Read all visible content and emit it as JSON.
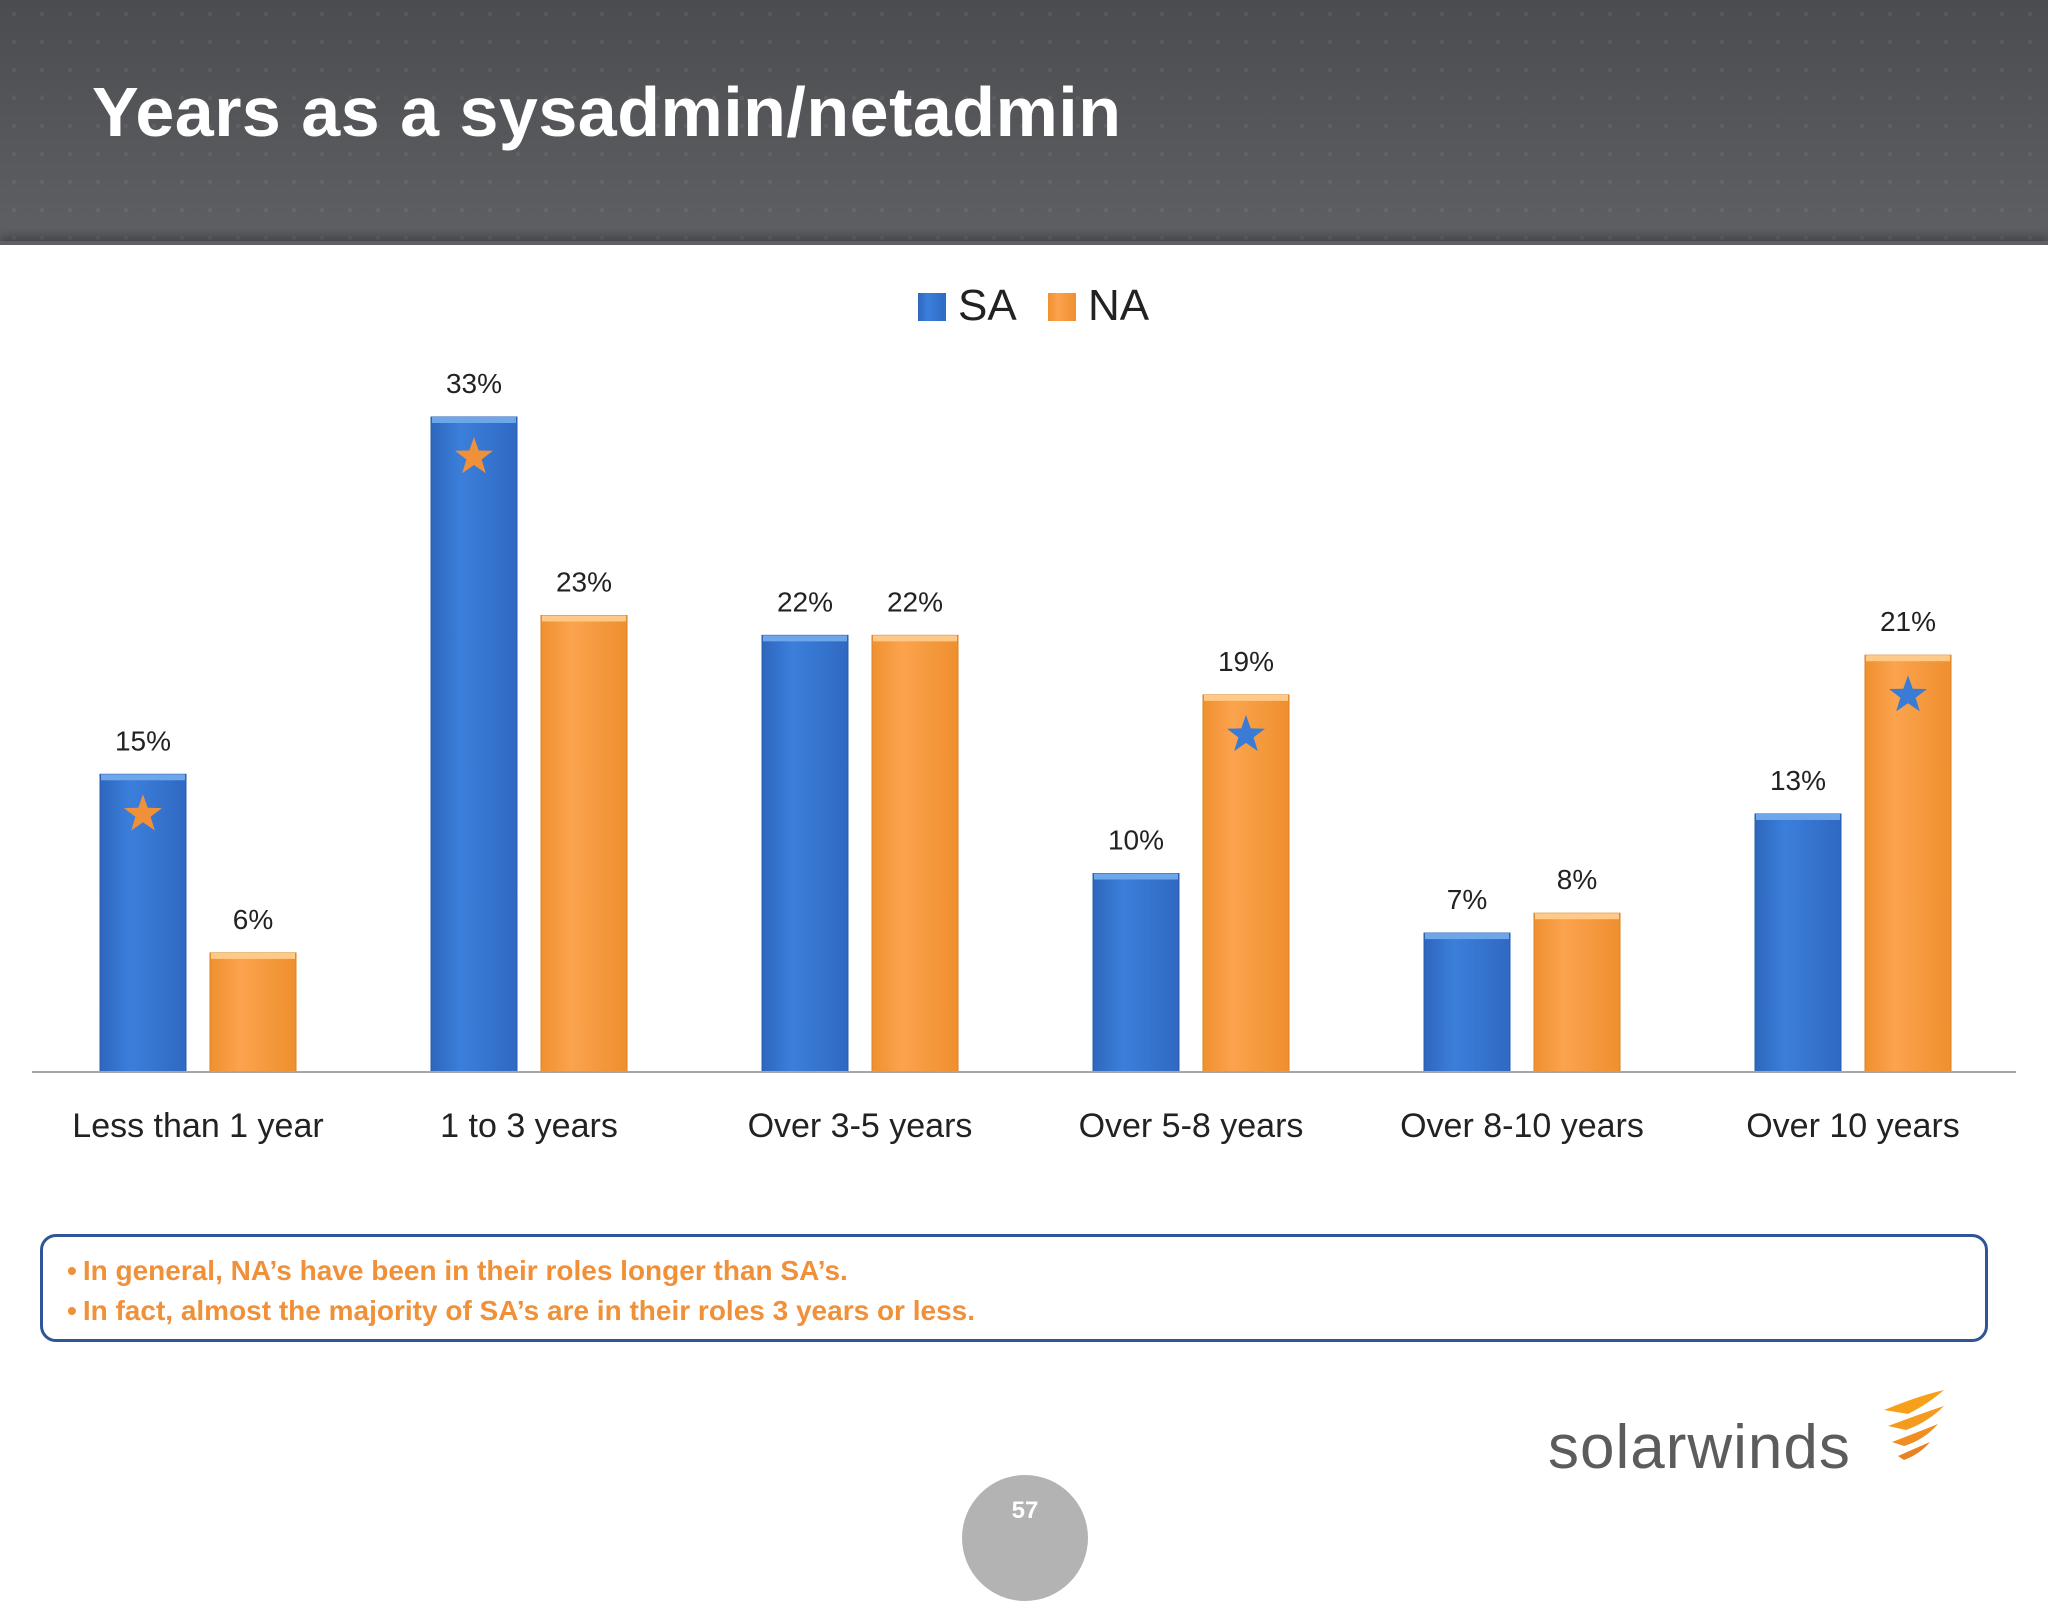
{
  "title": "Years as a sysadmin/netadmin",
  "chart_data": {
    "type": "bar",
    "categories": [
      "Less than 1 year",
      "1 to 3 years",
      "Over 3-5 years",
      "Over 5-8 years",
      "Over 8-10 years",
      "Over 10 years"
    ],
    "series": [
      {
        "name": "SA",
        "values": [
          15,
          33,
          22,
          10,
          7,
          13
        ],
        "labels": [
          "15%",
          "33%",
          "22%",
          "10%",
          "7%",
          "13%"
        ],
        "color": "#3a7bd5"
      },
      {
        "name": "NA",
        "values": [
          6,
          23,
          22,
          19,
          8,
          21
        ],
        "labels": [
          "6%",
          "23%",
          "22%",
          "19%",
          "8%",
          "21%"
        ],
        "color": "#f9a04b"
      }
    ],
    "ylim": [
      0,
      35
    ],
    "legend": "top-center",
    "grid": false,
    "annotations": [
      {
        "category": "Less than 1 year",
        "series": "SA",
        "marker": "star",
        "color": "#f0913a"
      },
      {
        "category": "1 to 3 years",
        "series": "SA",
        "marker": "star",
        "color": "#f0913a"
      },
      {
        "category": "Over 5-8 years",
        "series": "NA",
        "marker": "star",
        "color": "#3a7bd5"
      },
      {
        "category": "Over 10 years",
        "series": "NA",
        "marker": "star",
        "color": "#3a7bd5"
      }
    ]
  },
  "notes": [
    "In general, NA’s have been in their roles longer than SA’s.",
    "In fact, almost the majority of SA’s are in their roles 3 years or less."
  ],
  "logo": {
    "text": "solarwinds",
    "icon": "solarwinds-flame-icon"
  },
  "page_number": "57"
}
